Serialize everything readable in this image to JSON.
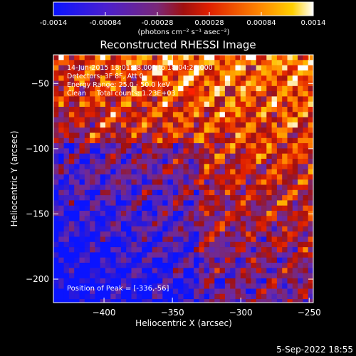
{
  "chart_data": {
    "type": "heatmap",
    "title": "Reconstructed RHESSI Image",
    "xlabel": "Heliocentric X (arcsec)",
    "ylabel": "Heliocentric Y (arcsec)",
    "xlim": [
      -437,
      -247
    ],
    "ylim": [
      -218,
      -28
    ],
    "x_ticks": [
      -400,
      -350,
      -300,
      -250
    ],
    "y_ticks": [
      -50,
      -100,
      -150,
      -200
    ],
    "colorbar": {
      "min": -0.0014,
      "max": 0.0014,
      "tick_values": [
        -0.0014,
        -0.00084,
        -0.00028,
        0.00028,
        0.00084,
        0.0014
      ],
      "tick_labels": [
        "-0.0014",
        "-0.00084",
        "-0.00028",
        "0.00028",
        "0.00084",
        "0.0014"
      ],
      "unit_label": "(photons cm⁻² s⁻¹ asec⁻²)",
      "colormap": [
        "#0a14ff",
        "#3a1cc8",
        "#6a2aa8",
        "#7a2878",
        "#a01010",
        "#e02000",
        "#ff7000",
        "#ffc000",
        "#ffffff"
      ]
    },
    "annotations": [
      "14-Jun-2015 18:01:48.000 to 18:04:24.000",
      "Detectors: 3F 8F, Att 0",
      "Energy Range: 25.0 - 50.0 keV",
      "Clean     Total counts: 1.23E+03"
    ],
    "peak_label": "Position of Peak = [-336,-56]",
    "peak_position": [
      -336,
      -56
    ],
    "grid": false
  },
  "footer": {
    "timestamp": "5-Sep-2022 18:55"
  }
}
